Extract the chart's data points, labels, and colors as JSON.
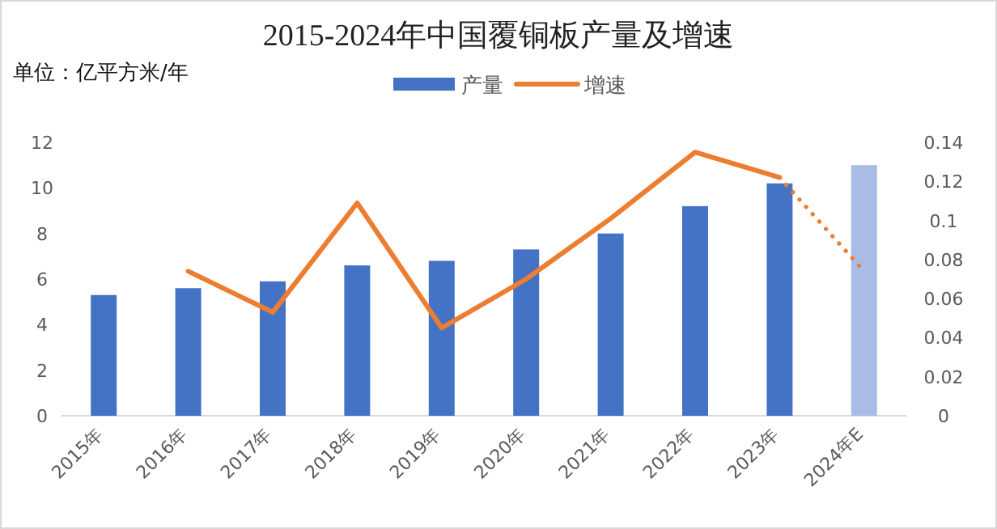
{
  "chart_data": {
    "type": "bar",
    "title": "2015-2024年中国覆铜板产量及增速",
    "annotations": [
      "单位：亿平方米/年"
    ],
    "categories": [
      "2015年",
      "2016年",
      "2017年",
      "2018年",
      "2019年",
      "2020年",
      "2021年",
      "2022年",
      "2023年",
      "2024年E"
    ],
    "series": [
      {
        "name": "产量",
        "color": "#4472c4",
        "colors": [
          "#4472c4",
          "#4472c4",
          "#4472c4",
          "#4472c4",
          "#4472c4",
          "#4472c4",
          "#4472c4",
          "#4472c4",
          "#4472c4",
          "#a9bce6"
        ],
        "values": [
          5.3,
          5.6,
          5.9,
          6.6,
          6.8,
          7.3,
          8.0,
          9.2,
          10.2,
          11.0
        ]
      },
      {
        "name": "增速",
        "type": "line",
        "axis": "y2",
        "color": "#ed7d31",
        "line_style": "solid",
        "values": [
          null,
          0.074,
          0.053,
          0.109,
          0.045,
          0.07,
          0.101,
          0.135,
          0.122,
          null
        ]
      },
      {
        "type": "line",
        "axis": "y2",
        "color": "#ed7d31",
        "line_style": "dotted",
        "values": [
          null,
          null,
          null,
          null,
          null,
          null,
          null,
          null,
          0.122,
          0.074
        ]
      }
    ],
    "ylim": [
      0,
      12
    ],
    "yticks": [
      0,
      2,
      4,
      6,
      8,
      10,
      12
    ],
    "y2lim": [
      0,
      0.14
    ],
    "y2ticks": [
      0,
      0.02,
      0.04,
      0.06,
      0.08,
      0.1,
      0.12,
      0.14
    ],
    "legend": "top",
    "grid": false
  }
}
